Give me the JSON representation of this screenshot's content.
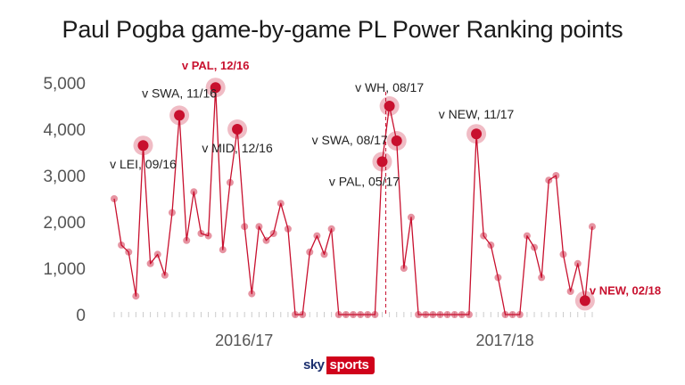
{
  "title": "Paul Pogba game-by-game PL Power Ranking points",
  "logo": {
    "sky": "sky",
    "sports": "sports"
  },
  "colors": {
    "line": "#c8102e",
    "accent": "#c8102e",
    "halo": "rgba(200,16,46,0.28)",
    "axis": "#555555",
    "tick": "#cccccc"
  },
  "chart_data": {
    "type": "line",
    "title": "Paul Pogba game-by-game PL Power Ranking points",
    "xlabel": "",
    "ylabel": "",
    "ylim": [
      0,
      5000
    ],
    "yticks": [
      0,
      1000,
      2000,
      3000,
      4000,
      5000
    ],
    "ytick_labels": [
      "0",
      "1,000",
      "2,000",
      "3,000",
      "4,000",
      "5,000"
    ],
    "season_labels": [
      "2016/17",
      "2017/18"
    ],
    "grid": false,
    "series": [
      {
        "values": [
          2500,
          1500,
          1350,
          400,
          3650,
          1100,
          1300,
          850,
          2200,
          4300,
          1600,
          2650,
          1750,
          1700,
          4900,
          1400,
          2850,
          4000,
          1900,
          450,
          1900,
          1600,
          1750,
          2400,
          1850,
          0,
          0,
          1350,
          1700,
          1300,
          1850,
          0,
          0,
          0,
          0,
          0,
          0,
          3300,
          4500,
          3750,
          1000,
          2100,
          0,
          0,
          0,
          0,
          0,
          0,
          0,
          0,
          3900,
          1700,
          1500,
          800,
          0,
          0,
          0,
          1700,
          1450,
          800,
          2900,
          3000,
          1300,
          500,
          1100,
          300,
          1900
        ]
      }
    ],
    "annotations": [
      {
        "index": 4,
        "value": 3650,
        "label": "v LEI, 09/16",
        "highlight": false
      },
      {
        "index": 9,
        "value": 4300,
        "label": "v SWA, 11/16",
        "highlight": false
      },
      {
        "index": 14,
        "value": 4900,
        "label": "v PAL, 12/16",
        "highlight": true
      },
      {
        "index": 17,
        "value": 4000,
        "label": "v MID, 12/16",
        "highlight": false
      },
      {
        "index": 37,
        "value": 3300,
        "label": "v PAL, 05/17",
        "highlight": false
      },
      {
        "index": 38,
        "value": 4500,
        "label": "v WH, 08/17",
        "highlight": false
      },
      {
        "index": 39,
        "value": 3750,
        "label": "v SWA, 08/17",
        "highlight": false
      },
      {
        "index": 50,
        "value": 3900,
        "label": "v NEW, 11/17",
        "highlight": false
      },
      {
        "index": 65,
        "value": 300,
        "label": "v NEW, 02/18",
        "highlight": true
      }
    ]
  }
}
